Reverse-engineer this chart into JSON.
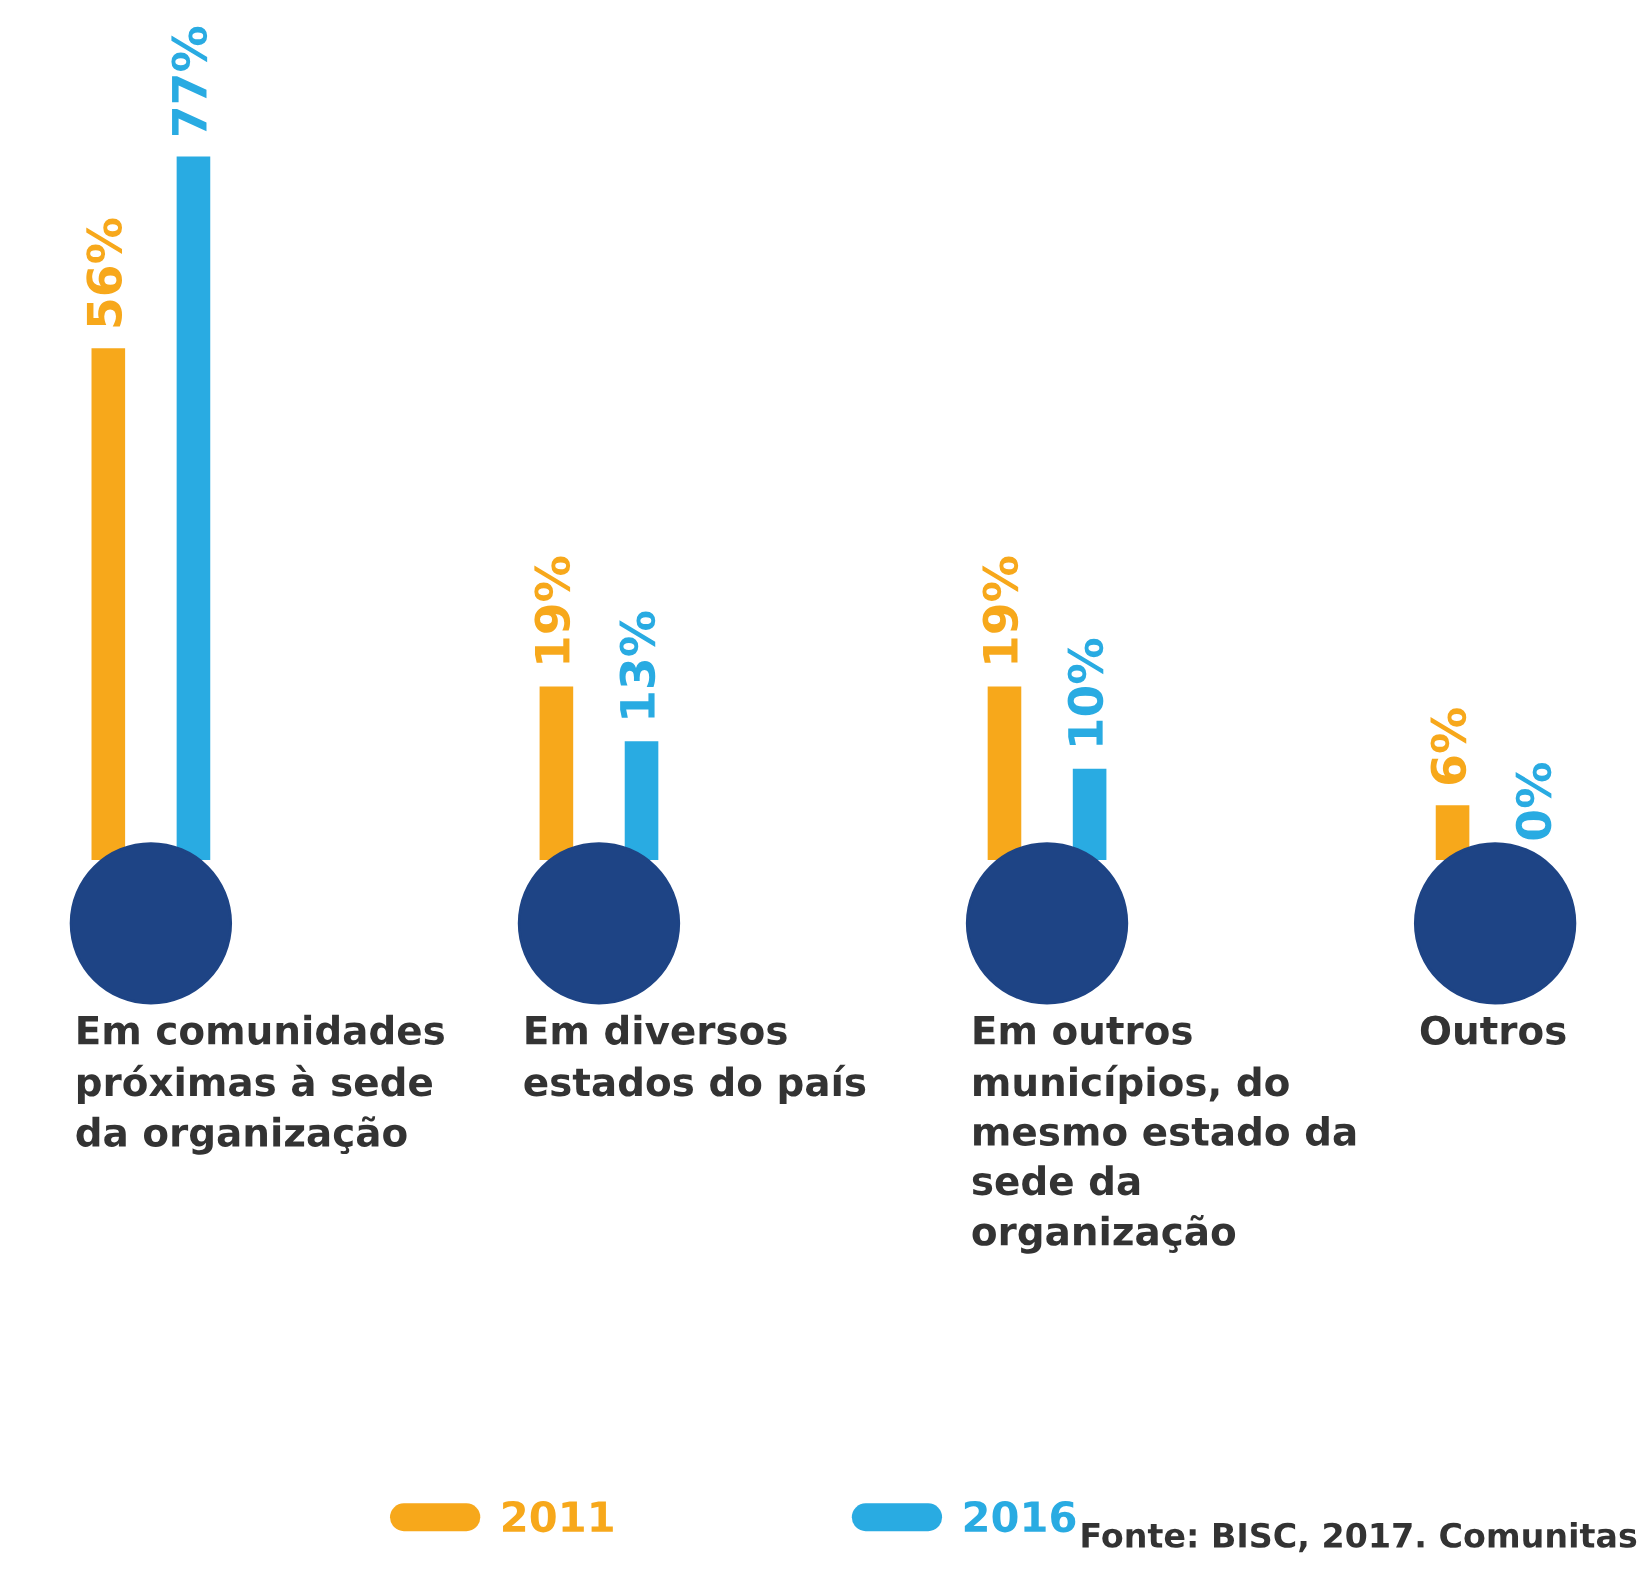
{
  "chart_data": {
    "type": "bar",
    "categories": [
      "Em comunidades próximas à sede da organização",
      "Em diversos estados do país",
      "Em outros municípios, do mesmo estado da sede da organização",
      "Outros"
    ],
    "series": [
      {
        "name": "2011",
        "color": "#f7a81b",
        "values": [
          56,
          19,
          19,
          6
        ],
        "value_labels": [
          "56%",
          "19%",
          "19%",
          "6%"
        ]
      },
      {
        "name": "2016",
        "color": "#29abe2",
        "values": [
          77,
          13,
          10,
          0
        ],
        "value_labels": [
          "77%",
          "13%",
          "10%",
          "0%"
        ]
      }
    ],
    "legend": "bottom",
    "annotations": [
      "Fonte: BISC, 2017. Comunitas"
    ]
  }
}
